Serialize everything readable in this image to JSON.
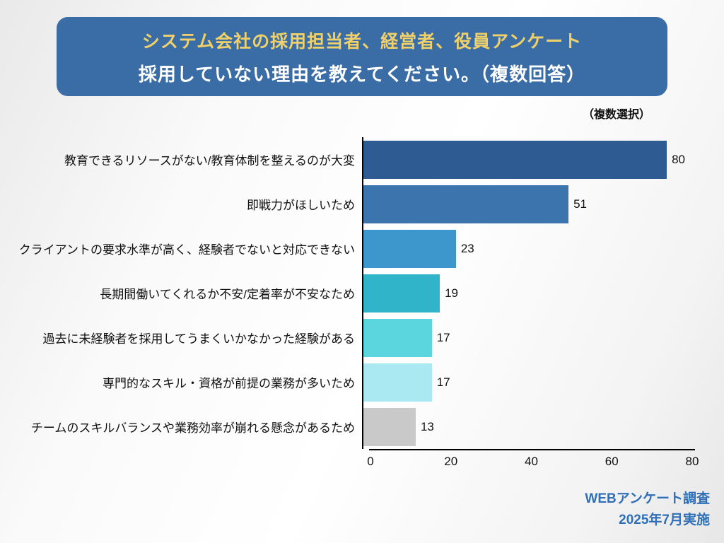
{
  "header": {
    "title_line1": "システム会社の採用担当者、経営者、役員アンケート",
    "title_line2": "採用していない理由を教えてください。（複数回答）",
    "bg_color": "#3a6ca6",
    "title1_color": "#f0d169",
    "title2_color": "#ffffff"
  },
  "note": "（複数選択）",
  "chart_data": {
    "type": "bar",
    "orientation": "horizontal",
    "title": "採用していない理由を教えてください。（複数回答）",
    "categories": [
      "教育できるリソースがない/教育体制を整えるのが大変",
      "即戦力がほしいため",
      "クライアントの要求水準が高く、経験者でないと対応できない",
      "長期間働いてくれるか不安/定着率が不安なため",
      "過去に未経験者を採用してうまくいかなかった経験がある",
      "専門的なスキル・資格が前提の業務が多いため",
      "チームのスキルバランスや業務効率が崩れる懸念があるため"
    ],
    "values": [
      80,
      51,
      23,
      19,
      17,
      17,
      13
    ],
    "bar_colors": [
      "#2d5b92",
      "#3c74ae",
      "#3e97cc",
      "#2fb4c9",
      "#5cd6de",
      "#abe9f2",
      "#c9c9c9"
    ],
    "x_ticks": [
      0,
      20,
      40,
      60,
      80
    ],
    "xlim": [
      0,
      80
    ],
    "xlabel": "",
    "ylabel": "",
    "grid": false,
    "legend": "none"
  },
  "footer": {
    "line1": "WEBアンケート調査",
    "line2": "2025年7月実施",
    "color": "#2e6fb7"
  }
}
